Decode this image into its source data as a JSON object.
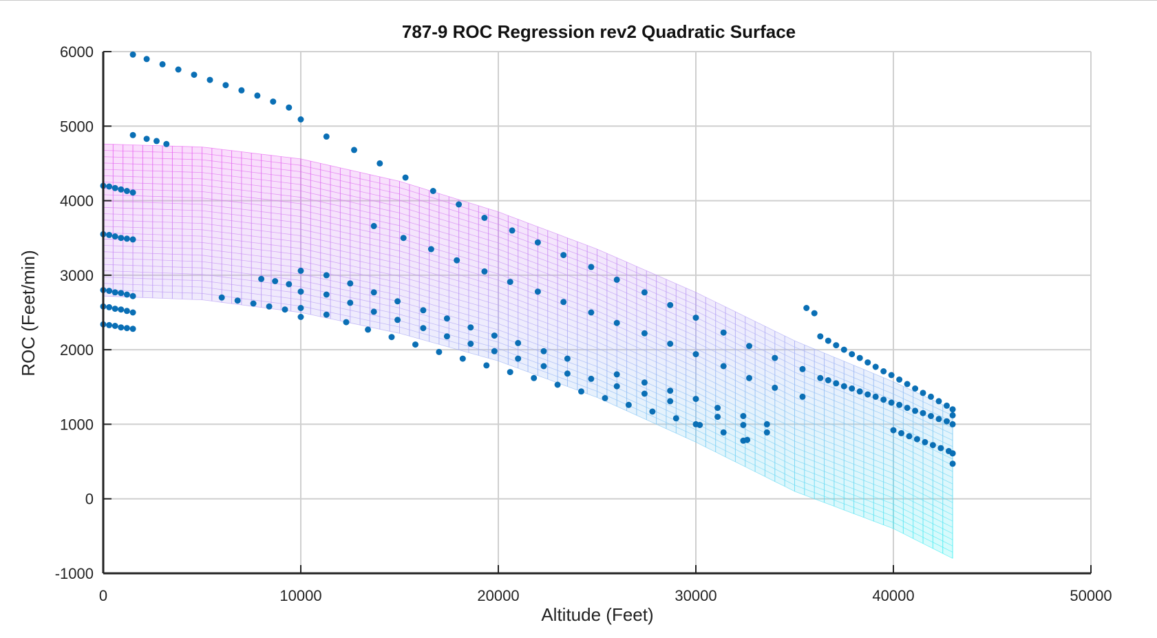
{
  "chart_data": {
    "type": "scatter",
    "title": "787-9 ROC Regression rev2 Quadratic Surface",
    "xlabel": "Altitude (Feet)",
    "ylabel": "ROC (Feet/min)",
    "xlim": [
      0,
      50000
    ],
    "ylim": [
      -1000,
      6000
    ],
    "xticks": [
      0,
      10000,
      20000,
      30000,
      40000,
      50000
    ],
    "yticks": [
      -1000,
      0,
      1000,
      2000,
      3000,
      4000,
      5000,
      6000
    ],
    "xtick_labels": [
      "0",
      "10000",
      "20000",
      "30000",
      "40000",
      "50000"
    ],
    "ytick_labels": [
      "-1000",
      "0",
      "1000",
      "2000",
      "3000",
      "4000",
      "5000",
      "6000"
    ],
    "grid": true,
    "colors": {
      "points": "#0a6fb5",
      "surface_top": "#ee5cf0",
      "surface_bottom": "#3cf2f2",
      "grid": "#cfcfcf",
      "axis": "#222222"
    },
    "surface": {
      "x_range": [
        0,
        43000
      ],
      "upper_edge": [
        [
          0,
          4760
        ],
        [
          5000,
          4720
        ],
        [
          10000,
          4560
        ],
        [
          15000,
          4260
        ],
        [
          20000,
          3850
        ],
        [
          25000,
          3350
        ],
        [
          30000,
          2770
        ],
        [
          35000,
          2120
        ],
        [
          40000,
          1570
        ],
        [
          43000,
          1200
        ]
      ],
      "lower_edge": [
        [
          0,
          2720
        ],
        [
          5000,
          2670
        ],
        [
          10000,
          2500
        ],
        [
          15000,
          2220
        ],
        [
          20000,
          1850
        ],
        [
          25000,
          1360
        ],
        [
          30000,
          760
        ],
        [
          35000,
          100
        ],
        [
          40000,
          -400
        ],
        [
          43000,
          -800
        ]
      ]
    },
    "series": [
      {
        "values": [
          [
            1500,
            5960
          ],
          [
            2200,
            5900
          ],
          [
            3000,
            5830
          ],
          [
            3800,
            5760
          ],
          [
            4600,
            5690
          ],
          [
            5400,
            5620
          ],
          [
            6200,
            5550
          ],
          [
            7000,
            5480
          ],
          [
            7800,
            5410
          ],
          [
            8600,
            5330
          ],
          [
            9400,
            5250
          ],
          [
            10000,
            5090
          ]
        ]
      },
      {
        "values": [
          [
            1500,
            4880
          ],
          [
            2200,
            4830
          ],
          [
            2700,
            4800
          ],
          [
            3200,
            4760
          ],
          [
            11300,
            4860
          ],
          [
            12700,
            4680
          ],
          [
            14000,
            4500
          ],
          [
            15300,
            4310
          ],
          [
            16700,
            4130
          ],
          [
            18000,
            3950
          ],
          [
            19300,
            3770
          ],
          [
            20700,
            3600
          ],
          [
            22000,
            3440
          ],
          [
            23300,
            3270
          ],
          [
            24700,
            3110
          ],
          [
            26000,
            2940
          ],
          [
            27400,
            2770
          ],
          [
            28700,
            2600
          ],
          [
            30000,
            2430
          ],
          [
            31400,
            2230
          ],
          [
            32700,
            2050
          ],
          [
            34000,
            1890
          ],
          [
            35400,
            1740
          ]
        ]
      },
      {
        "values": [
          [
            0,
            4200
          ],
          [
            300,
            4190
          ],
          [
            600,
            4170
          ],
          [
            900,
            4150
          ],
          [
            1200,
            4130
          ],
          [
            1500,
            4110
          ]
        ]
      },
      {
        "values": [
          [
            0,
            3550
          ],
          [
            300,
            3540
          ],
          [
            600,
            3520
          ],
          [
            900,
            3500
          ],
          [
            1200,
            3490
          ],
          [
            1500,
            3480
          ]
        ]
      },
      {
        "values": [
          [
            0,
            2800
          ],
          [
            300,
            2790
          ],
          [
            600,
            2770
          ],
          [
            900,
            2760
          ],
          [
            1200,
            2740
          ],
          [
            1500,
            2720
          ]
        ]
      },
      {
        "values": [
          [
            0,
            2580
          ],
          [
            300,
            2570
          ],
          [
            600,
            2550
          ],
          [
            900,
            2540
          ],
          [
            1200,
            2520
          ],
          [
            1500,
            2500
          ]
        ]
      },
      {
        "values": [
          [
            0,
            2340
          ],
          [
            300,
            2330
          ],
          [
            600,
            2320
          ],
          [
            900,
            2300
          ],
          [
            1200,
            2290
          ],
          [
            1500,
            2280
          ]
        ]
      },
      {
        "values": [
          [
            8000,
            2950
          ],
          [
            8700,
            2920
          ],
          [
            9400,
            2880
          ],
          [
            10000,
            3060
          ],
          [
            10000,
            2780
          ],
          [
            11300,
            3000
          ],
          [
            11300,
            2740
          ],
          [
            12500,
            2890
          ],
          [
            12500,
            2630
          ],
          [
            13700,
            2770
          ],
          [
            13700,
            2510
          ],
          [
            14900,
            2650
          ],
          [
            14900,
            2400
          ],
          [
            16200,
            2530
          ],
          [
            16200,
            2290
          ],
          [
            17400,
            2420
          ],
          [
            17400,
            2180
          ],
          [
            18600,
            2300
          ],
          [
            18600,
            2080
          ],
          [
            19800,
            2190
          ],
          [
            19800,
            1980
          ],
          [
            21000,
            2090
          ],
          [
            21000,
            1880
          ],
          [
            22300,
            1980
          ],
          [
            22300,
            1780
          ],
          [
            23500,
            1880
          ],
          [
            23500,
            1680
          ],
          [
            24700,
            1610
          ],
          [
            26000,
            1670
          ],
          [
            26000,
            1510
          ],
          [
            27400,
            1560
          ],
          [
            27400,
            1410
          ],
          [
            28700,
            1450
          ],
          [
            28700,
            1310
          ],
          [
            30000,
            1340
          ],
          [
            30000,
            1000
          ],
          [
            31100,
            1220
          ],
          [
            31100,
            1100
          ],
          [
            32400,
            1110
          ],
          [
            32400,
            990
          ],
          [
            33600,
            1000
          ],
          [
            33600,
            890
          ],
          [
            32400,
            780
          ]
        ]
      },
      {
        "values": [
          [
            13700,
            3660
          ],
          [
            15200,
            3500
          ],
          [
            16600,
            3350
          ],
          [
            17900,
            3200
          ],
          [
            19300,
            3050
          ],
          [
            20600,
            2910
          ],
          [
            22000,
            2780
          ],
          [
            23300,
            2640
          ],
          [
            24700,
            2500
          ],
          [
            26000,
            2360
          ],
          [
            27400,
            2220
          ],
          [
            28700,
            2080
          ],
          [
            30000,
            1940
          ],
          [
            31400,
            1780
          ],
          [
            32700,
            1620
          ],
          [
            34000,
            1490
          ],
          [
            35400,
            1370
          ]
        ]
      },
      {
        "values": [
          [
            6000,
            2700
          ],
          [
            6800,
            2660
          ],
          [
            7600,
            2620
          ],
          [
            8400,
            2580
          ],
          [
            9200,
            2540
          ],
          [
            10000,
            2560
          ],
          [
            10000,
            2440
          ],
          [
            11300,
            2470
          ],
          [
            12300,
            2370
          ],
          [
            13400,
            2270
          ],
          [
            14600,
            2170
          ],
          [
            15800,
            2070
          ],
          [
            17000,
            1970
          ],
          [
            18200,
            1880
          ],
          [
            19400,
            1790
          ],
          [
            20600,
            1700
          ],
          [
            21800,
            1620
          ],
          [
            23000,
            1530
          ],
          [
            24200,
            1440
          ],
          [
            25400,
            1350
          ],
          [
            26600,
            1260
          ],
          [
            27800,
            1170
          ],
          [
            29000,
            1080
          ],
          [
            30200,
            990
          ],
          [
            31400,
            890
          ],
          [
            32600,
            790
          ]
        ]
      },
      {
        "values": [
          [
            35600,
            2560
          ],
          [
            36000,
            2490
          ],
          [
            36300,
            2180
          ],
          [
            36700,
            2120
          ],
          [
            37100,
            2060
          ],
          [
            37500,
            2000
          ],
          [
            37900,
            1940
          ],
          [
            38300,
            1890
          ],
          [
            38700,
            1830
          ],
          [
            39100,
            1770
          ],
          [
            39500,
            1710
          ],
          [
            39900,
            1660
          ],
          [
            40300,
            1600
          ],
          [
            40700,
            1540
          ],
          [
            41100,
            1480
          ],
          [
            41500,
            1420
          ],
          [
            41900,
            1370
          ],
          [
            42300,
            1310
          ],
          [
            42700,
            1250
          ],
          [
            43000,
            1200
          ],
          [
            43000,
            1120
          ]
        ]
      },
      {
        "values": [
          [
            36300,
            1620
          ],
          [
            36700,
            1590
          ],
          [
            37100,
            1550
          ],
          [
            37500,
            1510
          ],
          [
            37900,
            1480
          ],
          [
            38300,
            1440
          ],
          [
            38700,
            1400
          ],
          [
            39100,
            1370
          ],
          [
            39500,
            1330
          ],
          [
            39900,
            1290
          ],
          [
            40300,
            1260
          ],
          [
            40700,
            1220
          ],
          [
            41100,
            1180
          ],
          [
            41500,
            1150
          ],
          [
            41900,
            1110
          ],
          [
            42300,
            1070
          ],
          [
            42700,
            1040
          ],
          [
            43000,
            1000
          ],
          [
            43000,
            610
          ]
        ]
      },
      {
        "values": [
          [
            40000,
            920
          ],
          [
            40400,
            880
          ],
          [
            40800,
            840
          ],
          [
            41200,
            800
          ],
          [
            41600,
            760
          ],
          [
            42000,
            720
          ],
          [
            42400,
            680
          ],
          [
            42800,
            640
          ],
          [
            43000,
            610
          ],
          [
            43000,
            470
          ]
        ]
      }
    ]
  }
}
